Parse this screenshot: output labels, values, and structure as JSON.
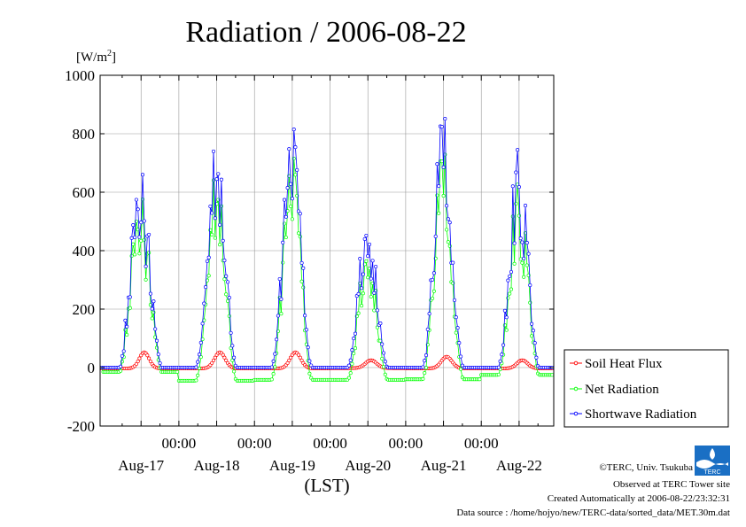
{
  "chart_data": {
    "type": "line",
    "title": "Radiation / 2006-08-22",
    "ylabel_main": "[W/m",
    "ylabel_sup": "2",
    "ylabel_end": "]",
    "xlabel": "(LST)",
    "ylim": [
      -200,
      1000
    ],
    "yticks": [
      "1000",
      "800",
      "600",
      "400",
      "200",
      "0",
      "-200"
    ],
    "ytick_values": [
      1000,
      800,
      600,
      400,
      200,
      0,
      -200
    ],
    "xlim": [
      -1,
      143
    ],
    "x_unit": "hours since start of Aug-17 (LST)",
    "x_time_ticks": [
      {
        "label": "00:00",
        "value": 24
      },
      {
        "label": "00:00",
        "value": 48
      },
      {
        "label": "00:00",
        "value": 72
      },
      {
        "label": "00:00",
        "value": 96
      },
      {
        "label": "00:00",
        "value": 120
      }
    ],
    "x_day_labels": [
      {
        "label": "Aug-17",
        "value": 12
      },
      {
        "label": "Aug-18",
        "value": 36
      },
      {
        "label": "Aug-19",
        "value": 60
      },
      {
        "label": "Aug-20",
        "value": 84
      },
      {
        "label": "Aug-21",
        "value": 108
      },
      {
        "label": "Aug-22",
        "value": 132
      }
    ],
    "grid": true,
    "legend_position": "right",
    "series": [
      {
        "name": "Soil Heat Flux",
        "color": "#ff0000",
        "marker": "circle",
        "days": [
          {
            "offset": 0,
            "peak": 55,
            "peakHour": 13.0,
            "width": 2.2,
            "night": -3
          },
          {
            "offset": 24,
            "peak": 55,
            "peakHour": 13.0,
            "width": 2.4,
            "night": -3
          },
          {
            "offset": 48,
            "peak": 55,
            "peakHour": 13.0,
            "width": 2.4,
            "night": -3
          },
          {
            "offset": 72,
            "peak": 27,
            "peakHour": 13.0,
            "width": 2.5,
            "night": -2
          },
          {
            "offset": 96,
            "peak": 40,
            "peakHour": 13.0,
            "width": 2.4,
            "night": -3
          },
          {
            "offset": 120,
            "peak": 28,
            "peakHour": 13.0,
            "width": 2.4,
            "night": -3
          }
        ]
      },
      {
        "name": "Net Radiation",
        "color": "#00ff00",
        "marker": "circle",
        "days": [
          {
            "offset": 0,
            "peak": 620,
            "peakHour": 12.5,
            "width": 1.6,
            "night": -15
          },
          {
            "offset": 24,
            "peak": 760,
            "peakHour": 12.2,
            "width": 2.0,
            "night": -45
          },
          {
            "offset": 48,
            "peak": 760,
            "peakHour": 12.2,
            "width": 2.0,
            "night": -42
          },
          {
            "offset": 72,
            "peak": 440,
            "peakHour": 12.2,
            "width": 2.1,
            "night": -42
          },
          {
            "offset": 96,
            "peak": 750,
            "peakHour": 12.2,
            "width": 2.0,
            "night": -40
          },
          {
            "offset": 120,
            "peak": 660,
            "peakHour": 12.2,
            "width": 2.0,
            "night": -25
          }
        ]
      },
      {
        "name": "Shortwave Radiation",
        "color": "#0000ff",
        "marker": "circle",
        "days": [
          {
            "offset": 0,
            "peak": 710,
            "peakHour": 12.5,
            "width": 1.6,
            "night": 0
          },
          {
            "offset": 24,
            "peak": 875,
            "peakHour": 12.2,
            "width": 2.0,
            "night": 0
          },
          {
            "offset": 48,
            "peak": 865,
            "peakHour": 12.2,
            "width": 2.0,
            "night": 0
          },
          {
            "offset": 72,
            "peak": 545,
            "peakHour": 12.2,
            "width": 2.1,
            "night": 0
          },
          {
            "offset": 96,
            "peak": 875,
            "peakHour": 12.2,
            "width": 2.0,
            "night": 0
          },
          {
            "offset": 120,
            "peak": 785,
            "peakHour": 12.2,
            "width": 2.0,
            "night": 0
          }
        ]
      }
    ]
  },
  "footer": {
    "copyright": "©TERC, Univ. Tsukuba",
    "observed": "Observed at TERC Tower site",
    "created": "Created Automatically at 2006-08-22/23:32:31",
    "source": "Data source : /home/hojyo/new/TERC-data/sorted_data/MET.30m.dat",
    "logo_text": "TERC"
  }
}
